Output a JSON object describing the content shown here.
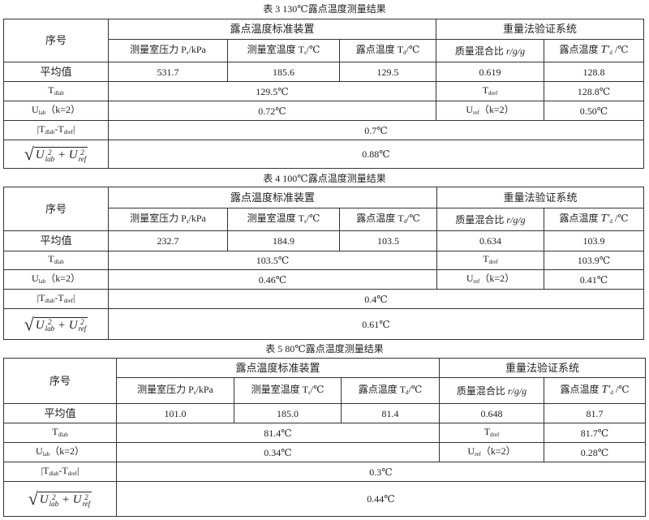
{
  "tables": [
    {
      "caption": "表 3   130℃露点温度测量结果",
      "row_label": "序号",
      "group_std": "露点温度标准装置",
      "group_ref": "重量法验证系统",
      "col_pressure": {
        "main": "测量室压力 P",
        "sub": "s",
        "tail": "/kPa"
      },
      "col_temp": {
        "main": "测量室温度 T",
        "sub": "s",
        "tail": "/℃"
      },
      "col_dew": {
        "main": "露点温度 T",
        "sub": "d",
        "tail": "/℃"
      },
      "col_ratio": {
        "main": "质量混合比 ",
        "ital": "r/g/g"
      },
      "col_dew_ref": {
        "main": "露点温度 ",
        "sym": "T′",
        "sub": "d",
        "tail": " /℃"
      },
      "avg_label": "平均值",
      "avg": [
        "531.7",
        "185.6",
        "129.5",
        "0.619",
        "128.8"
      ],
      "tdlab_label": {
        "main": "T",
        "sub": "dlab"
      },
      "tdlab": "129.5℃",
      "tdref_label": {
        "main": "T",
        "sub": "dref"
      },
      "tdref": "128.8℃",
      "ulab_label": {
        "main": "U",
        "sub": "lab",
        "tail": "（k=2）"
      },
      "ulab": "0.72℃",
      "uref_label": {
        "main": "U",
        "sub": "ref",
        "tail": "（k=2）"
      },
      "uref": "0.50℃",
      "diff_label": {
        "a": "|T",
        "asub": "dlab",
        "b": "-T",
        "bsub": "dref",
        "c": "|"
      },
      "diff": "0.7℃",
      "combined": "0.88℃"
    },
    {
      "caption": "表 4   100℃露点温度测量结果",
      "row_label": "序号",
      "group_std": "露点温度标准装置",
      "group_ref": "重量法验证系统",
      "col_pressure": {
        "main": "测量室压力 P",
        "sub": "s",
        "tail": "/kPa"
      },
      "col_temp": {
        "main": "测量室温度 T",
        "sub": "s",
        "tail": "/℃"
      },
      "col_dew": {
        "main": "露点温度 T",
        "sub": "d",
        "tail": "/℃"
      },
      "col_ratio": {
        "main": "质量混合比 ",
        "ital": "r/g/g"
      },
      "col_dew_ref": {
        "main": "露点温度 ",
        "sym": "T′",
        "sub": "d",
        "tail": " /℃"
      },
      "avg_label": "平均值",
      "avg": [
        "232.7",
        "184.9",
        "103.5",
        "0.634",
        "103.9"
      ],
      "tdlab_label": {
        "main": "T",
        "sub": "dlab"
      },
      "tdlab": "103.5℃",
      "tdref_label": {
        "main": "T",
        "sub": "dref"
      },
      "tdref": "103.9℃",
      "ulab_label": {
        "main": "U",
        "sub": "lab",
        "tail": "（k=2）"
      },
      "ulab": "0.46℃",
      "uref_label": {
        "main": "U",
        "sub": "ref",
        "tail": "（k=2）"
      },
      "uref": "0.41℃",
      "diff_label": {
        "a": "|T",
        "asub": "dlab",
        "b": "-T",
        "bsub": "dref",
        "c": "|"
      },
      "diff": "0.4℃",
      "combined": "0.61℃"
    },
    {
      "caption": "表 5   80℃露点温度测量结果",
      "row_label": "序号",
      "group_std": "露点温度标准装置",
      "group_ref": "重量法验证系统",
      "col_pressure": {
        "main": "测量室压力 P",
        "sub": "s",
        "tail": "/kPa"
      },
      "col_temp": {
        "main": "测量室温度 T",
        "sub": "s",
        "tail": "/℃"
      },
      "col_dew": {
        "main": "露点温度 T",
        "sub": "d",
        "tail": "/℃"
      },
      "col_ratio": {
        "main": "质量混合比 ",
        "ital": "r/g/g"
      },
      "col_dew_ref": {
        "main": "露点温度 ",
        "sym": "T′",
        "sub": "d",
        "tail": " /℃"
      },
      "avg_label": "平均值",
      "avg": [
        "101.0",
        "185.0",
        "81.4",
        "0.648",
        "81.7"
      ],
      "tdlab_label": {
        "main": "T",
        "sub": "dlab"
      },
      "tdlab": "81.4℃",
      "tdref_label": {
        "main": "T",
        "sub": "dref"
      },
      "tdref": "81.7℃",
      "ulab_label": {
        "main": "U",
        "sub": "lab",
        "tail": "（k=2）"
      },
      "ulab": "0.34℃",
      "uref_label": {
        "main": "U",
        "sub": "ref",
        "tail": "（k=2）"
      },
      "uref": "0.28℃",
      "diff_label": {
        "a": "|T",
        "asub": "dlab",
        "b": "-T",
        "bsub": "dref",
        "c": "|"
      },
      "diff": "0.3℃",
      "combined": "0.44℃"
    }
  ],
  "formula": {
    "symbol": "U",
    "power": "2",
    "sub_lab": "lab",
    "sub_ref": "ref",
    "plus": "+",
    "radical": "√"
  }
}
